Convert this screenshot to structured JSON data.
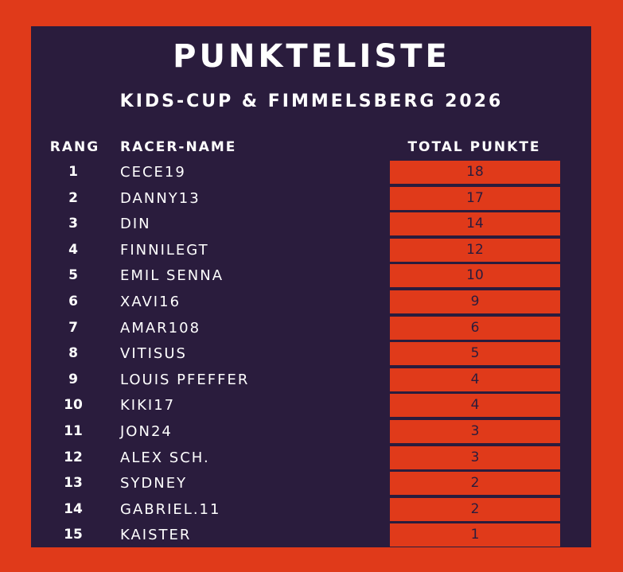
{
  "header": {
    "title": "PUNKTELISTE",
    "subtitle": "KIDS-CUP & FIMMELSBERG 2026"
  },
  "columns": {
    "rank": "RANG",
    "name": "RACER-NAME",
    "total": "TOTAL PUNKTE"
  },
  "colors": {
    "frame": "#e03a1a",
    "panel": "#2a1c3d",
    "text": "#ffffff",
    "points_cell": "#e03a1a"
  },
  "rows": [
    {
      "rank": "1",
      "name": "CECE19",
      "points": "18"
    },
    {
      "rank": "2",
      "name": "DANNY13",
      "points": "17"
    },
    {
      "rank": "3",
      "name": "DIN",
      "points": "14"
    },
    {
      "rank": "4",
      "name": "FINNILEGT",
      "points": "12"
    },
    {
      "rank": "5",
      "name": "EMIL SENNA",
      "points": "10"
    },
    {
      "rank": "6",
      "name": "XAVI16",
      "points": "9"
    },
    {
      "rank": "7",
      "name": "AMAR108",
      "points": "6"
    },
    {
      "rank": "8",
      "name": "VITISUS",
      "points": "5"
    },
    {
      "rank": "9",
      "name": "LOUIS PFEFFER",
      "points": "4"
    },
    {
      "rank": "10",
      "name": "KIKI17",
      "points": "4"
    },
    {
      "rank": "11",
      "name": "JON24",
      "points": "3"
    },
    {
      "rank": "12",
      "name": "ALEX SCH.",
      "points": "3"
    },
    {
      "rank": "13",
      "name": "SYDNEY",
      "points": "2"
    },
    {
      "rank": "14",
      "name": "GABRIEL.11",
      "points": "2"
    },
    {
      "rank": "15",
      "name": "KAISTER",
      "points": "1"
    }
  ]
}
